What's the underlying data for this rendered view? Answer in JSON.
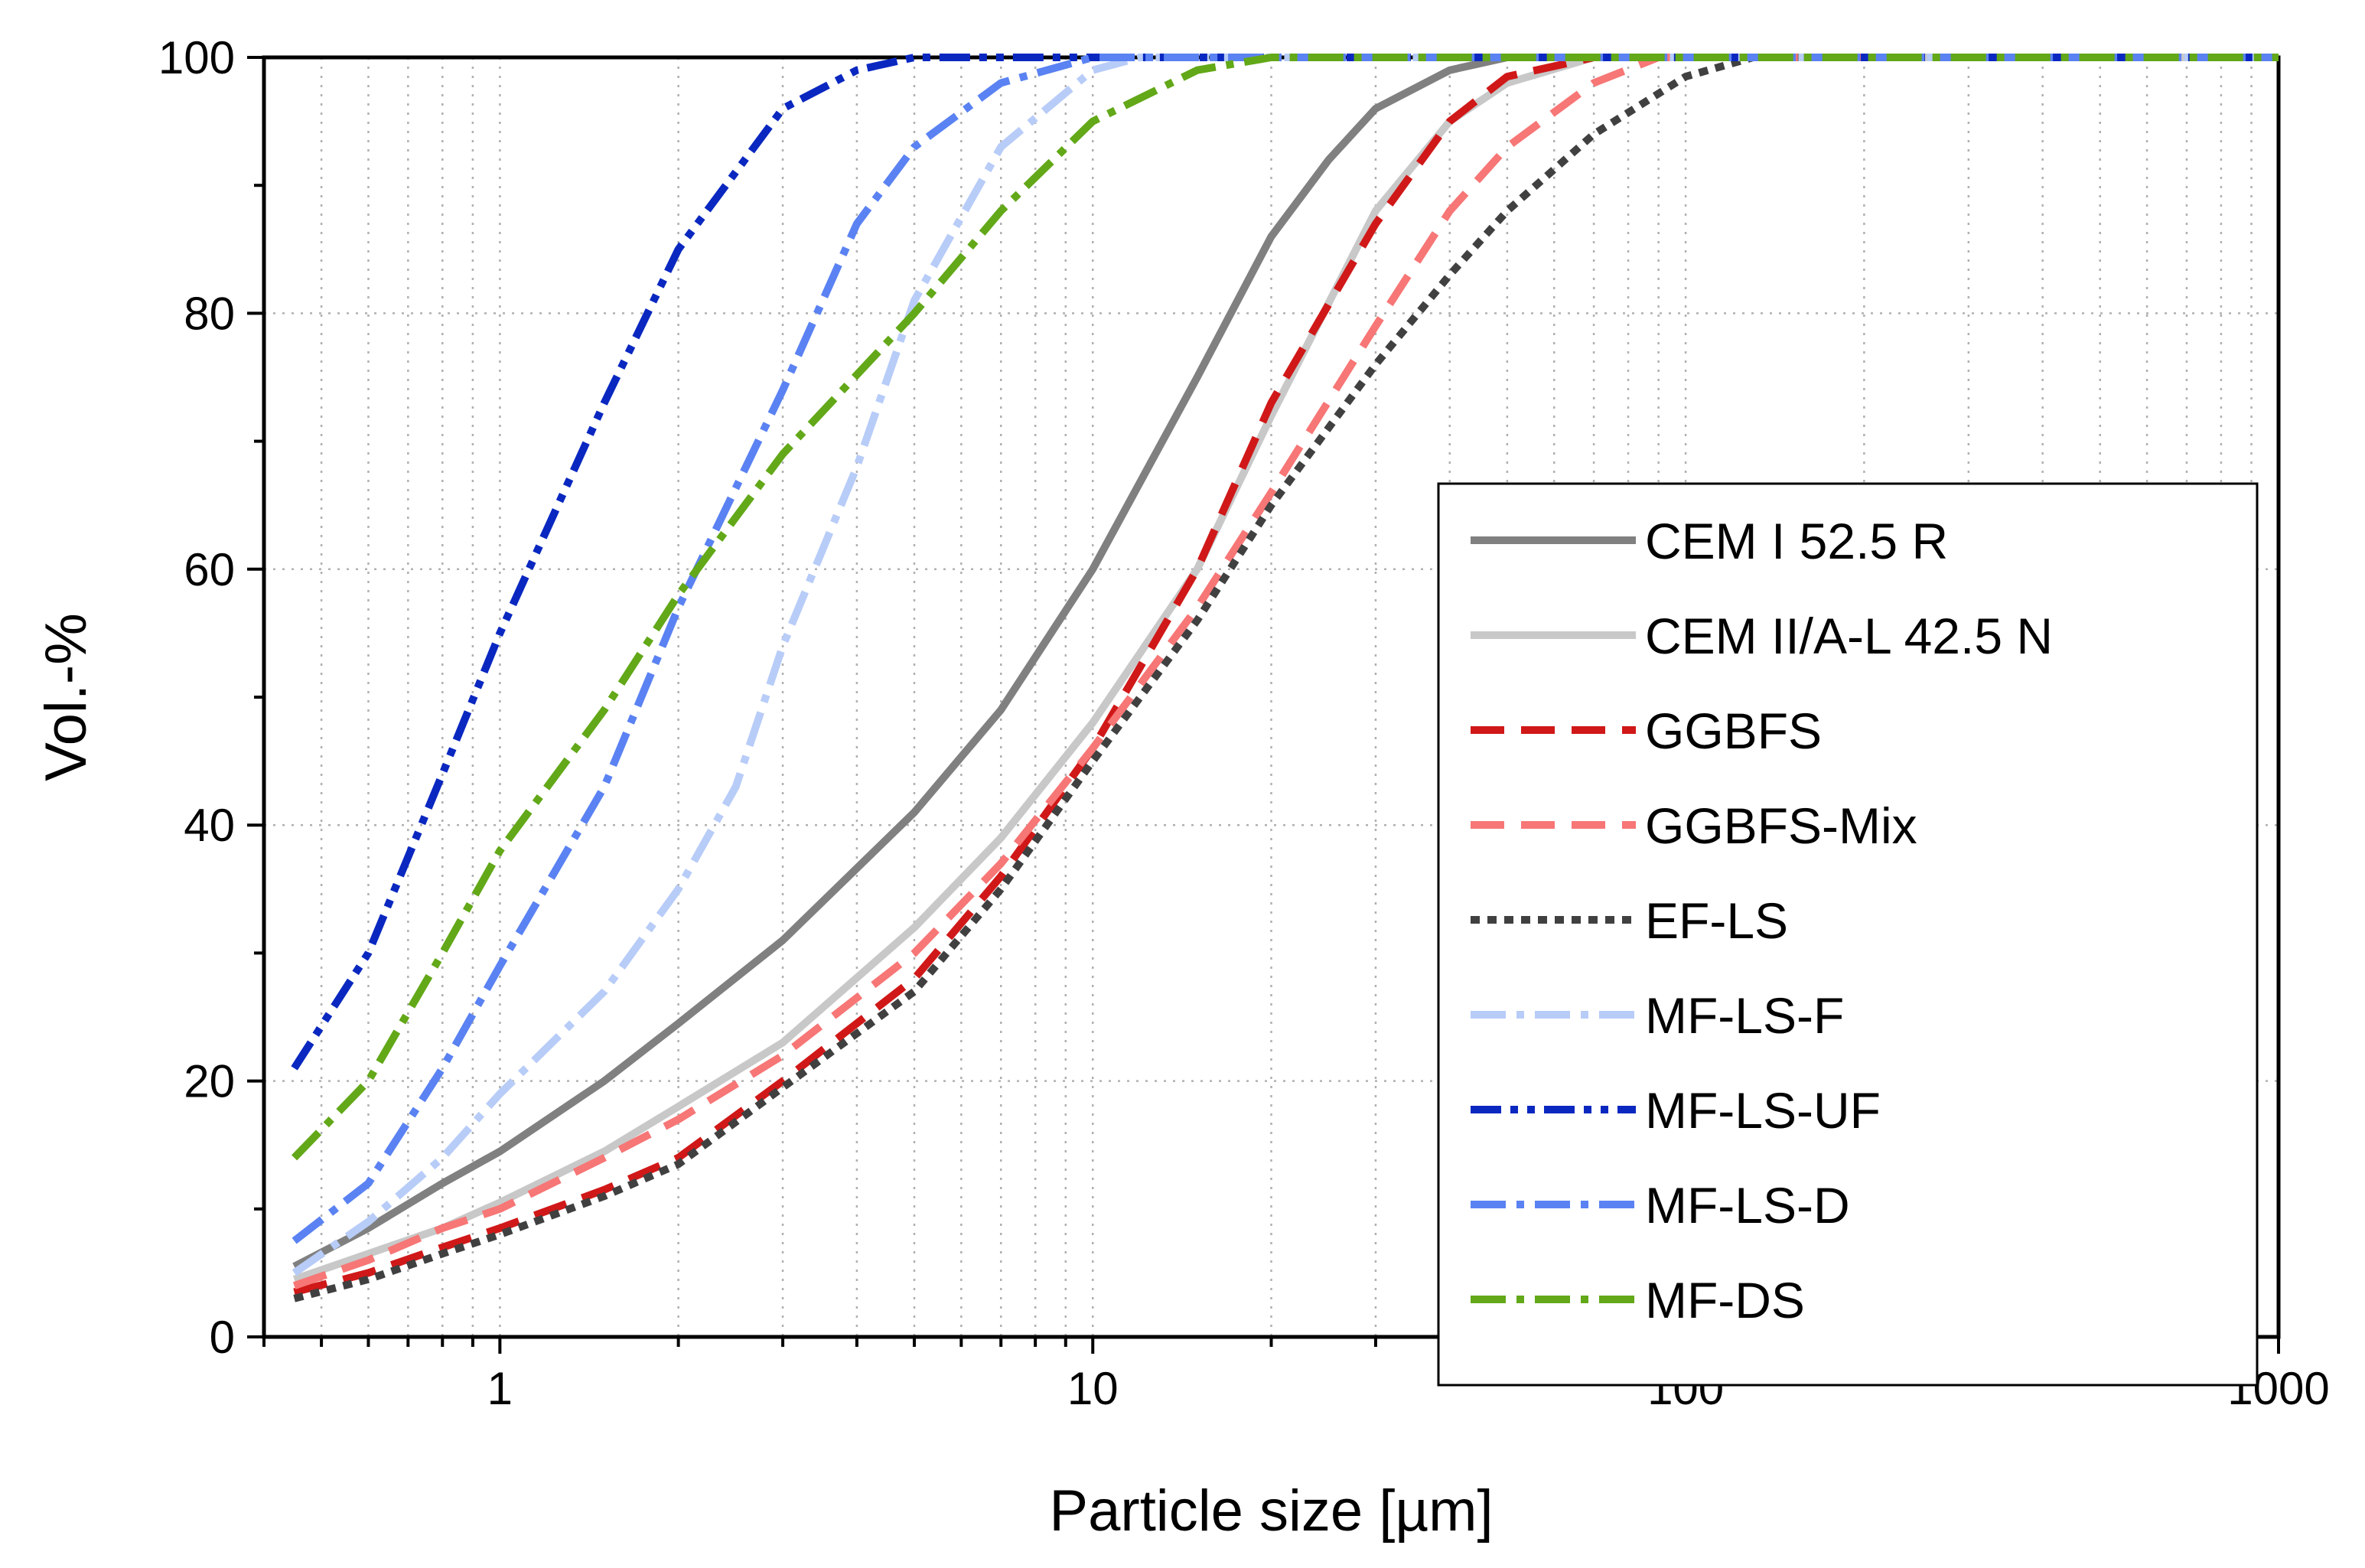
{
  "chart_data": {
    "type": "line",
    "xlabel": "Particle size [µm]",
    "ylabel": "Vol.-%",
    "xscale": "log",
    "xlim": [
      0.4,
      1000
    ],
    "ylim": [
      0,
      100
    ],
    "x_ticks": [
      1,
      10,
      100,
      1000
    ],
    "x_tick_labels": [
      "1",
      "10",
      "100",
      "1000"
    ],
    "y_ticks": [
      0,
      20,
      40,
      60,
      80,
      100
    ],
    "y_tick_labels": [
      "0",
      "20",
      "40",
      "60",
      "80",
      "100"
    ],
    "grid": "dotted",
    "legend_position": "bottom-right",
    "series": [
      {
        "name": "CEM I 52.5 R",
        "color": "#808080",
        "dash": "solid",
        "points": [
          [
            0.45,
            5.5
          ],
          [
            0.6,
            8.5
          ],
          [
            0.8,
            12
          ],
          [
            1,
            14.5
          ],
          [
            1.5,
            20
          ],
          [
            2,
            24.5
          ],
          [
            3,
            31
          ],
          [
            5,
            41
          ],
          [
            7,
            49
          ],
          [
            10,
            60
          ],
          [
            15,
            75
          ],
          [
            20,
            86
          ],
          [
            25,
            92
          ],
          [
            30,
            96
          ],
          [
            40,
            99
          ],
          [
            50,
            100
          ],
          [
            1000,
            100
          ]
        ]
      },
      {
        "name": "CEM II/A-L 42.5 N",
        "color": "#c8c8c8",
        "dash": "solid",
        "points": [
          [
            0.45,
            4.5
          ],
          [
            0.6,
            6.5
          ],
          [
            0.8,
            8.5
          ],
          [
            1,
            10.5
          ],
          [
            1.5,
            14.5
          ],
          [
            2,
            18
          ],
          [
            3,
            23
          ],
          [
            5,
            32
          ],
          [
            7,
            39
          ],
          [
            10,
            48
          ],
          [
            15,
            60
          ],
          [
            20,
            72
          ],
          [
            30,
            88
          ],
          [
            40,
            95
          ],
          [
            50,
            98
          ],
          [
            70,
            100
          ],
          [
            1000,
            100
          ]
        ]
      },
      {
        "name": "GGBFS",
        "color": "#d01818",
        "dash": "longdash",
        "points": [
          [
            0.45,
            3.5
          ],
          [
            0.6,
            5
          ],
          [
            0.8,
            7
          ],
          [
            1,
            8.5
          ],
          [
            1.5,
            11.5
          ],
          [
            2,
            14
          ],
          [
            3,
            20
          ],
          [
            5,
            28
          ],
          [
            7,
            36
          ],
          [
            10,
            46
          ],
          [
            15,
            60
          ],
          [
            20,
            73
          ],
          [
            30,
            87
          ],
          [
            40,
            95
          ],
          [
            50,
            98.5
          ],
          [
            70,
            100
          ],
          [
            1000,
            100
          ]
        ]
      },
      {
        "name": "GGBFS-Mix",
        "color": "#f77676",
        "dash": "longdash",
        "points": [
          [
            0.45,
            4
          ],
          [
            0.6,
            6
          ],
          [
            0.8,
            8.5
          ],
          [
            1,
            10
          ],
          [
            1.5,
            14
          ],
          [
            2,
            17
          ],
          [
            3,
            22
          ],
          [
            5,
            30
          ],
          [
            7,
            37
          ],
          [
            10,
            46
          ],
          [
            15,
            57
          ],
          [
            20,
            66
          ],
          [
            30,
            79
          ],
          [
            40,
            88
          ],
          [
            50,
            93
          ],
          [
            70,
            98
          ],
          [
            90,
            100
          ],
          [
            1000,
            100
          ]
        ]
      },
      {
        "name": "EF-LS",
        "color": "#404040",
        "dash": "dotted",
        "points": [
          [
            0.45,
            3
          ],
          [
            0.6,
            4.5
          ],
          [
            0.8,
            6.5
          ],
          [
            1,
            8
          ],
          [
            1.5,
            11
          ],
          [
            2,
            13.5
          ],
          [
            3,
            19.5
          ],
          [
            5,
            27
          ],
          [
            7,
            35
          ],
          [
            10,
            45
          ],
          [
            15,
            56
          ],
          [
            20,
            65
          ],
          [
            30,
            76
          ],
          [
            40,
            83
          ],
          [
            50,
            88
          ],
          [
            70,
            94
          ],
          [
            100,
            98.5
          ],
          [
            130,
            100
          ],
          [
            1000,
            100
          ]
        ]
      },
      {
        "name": "MF-LS-F",
        "color": "#b8ccf8",
        "dash": "dashdot",
        "points": [
          [
            0.45,
            5
          ],
          [
            0.6,
            9
          ],
          [
            0.8,
            14
          ],
          [
            1,
            19
          ],
          [
            1.5,
            27
          ],
          [
            2,
            35
          ],
          [
            2.5,
            43
          ],
          [
            3,
            54
          ],
          [
            4,
            68
          ],
          [
            5,
            81
          ],
          [
            7,
            93
          ],
          [
            10,
            99
          ],
          [
            12,
            100
          ],
          [
            1000,
            100
          ]
        ]
      },
      {
        "name": "MF-LS-UF",
        "color": "#0a28c0",
        "dash": "dashdotdot",
        "points": [
          [
            0.45,
            21
          ],
          [
            0.6,
            30
          ],
          [
            0.8,
            44
          ],
          [
            1,
            55
          ],
          [
            1.5,
            73
          ],
          [
            2,
            85
          ],
          [
            3,
            96
          ],
          [
            4,
            99
          ],
          [
            5,
            100
          ],
          [
            1000,
            100
          ]
        ]
      },
      {
        "name": "MF-LS-D",
        "color": "#5a82f2",
        "dash": "dashdot",
        "points": [
          [
            0.45,
            7.5
          ],
          [
            0.6,
            12
          ],
          [
            0.8,
            21
          ],
          [
            1,
            29
          ],
          [
            1.5,
            43
          ],
          [
            2,
            57
          ],
          [
            3,
            74
          ],
          [
            4,
            87
          ],
          [
            5,
            93
          ],
          [
            7,
            98
          ],
          [
            10,
            100
          ],
          [
            1000,
            100
          ]
        ]
      },
      {
        "name": "MF-DS",
        "color": "#62a818",
        "dash": "dashdot",
        "points": [
          [
            0.45,
            14
          ],
          [
            0.6,
            20
          ],
          [
            0.8,
            30
          ],
          [
            1,
            38
          ],
          [
            1.5,
            49
          ],
          [
            2,
            58
          ],
          [
            3,
            69
          ],
          [
            5,
            80
          ],
          [
            7,
            88
          ],
          [
            10,
            95
          ],
          [
            15,
            99
          ],
          [
            20,
            100
          ],
          [
            1000,
            100
          ]
        ]
      }
    ]
  }
}
